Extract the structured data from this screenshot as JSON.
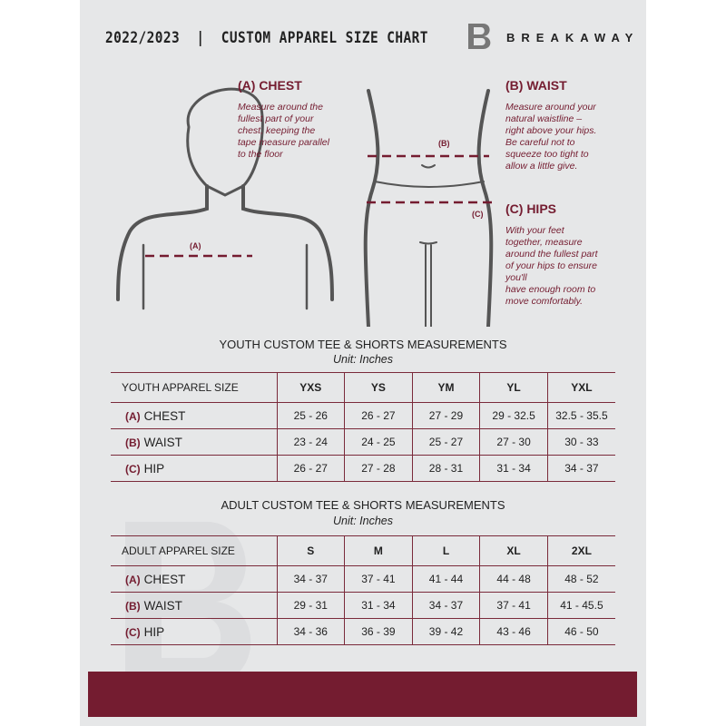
{
  "header": {
    "title": "2022/2023  |  CUSTOM APPAREL SIZE CHART",
    "brand": "BREAKAWAY",
    "logo_letter": "B"
  },
  "colors": {
    "accent": "#741c30",
    "background": "#e6e7e8"
  },
  "guide": {
    "chest": {
      "heading": "(A) CHEST",
      "marker": "(A)",
      "text": [
        "Measure around the",
        "fullest part of your",
        "chest, keeping the",
        "tape measure parallel",
        "to the floor"
      ]
    },
    "waist": {
      "heading": "(B) WAIST",
      "marker": "(B)",
      "text": [
        "Measure around your",
        "natural waistline –",
        "right above your hips.",
        "Be careful not to",
        "squeeze too tight to",
        "allow a little give."
      ]
    },
    "hips": {
      "heading": "(C) HIPS",
      "marker": "(C)",
      "text": [
        "With your feet",
        "together, measure",
        "around the fullest part",
        "of your hips to ensure",
        "you'll",
        "have enough room to",
        "move comfortably."
      ]
    }
  },
  "youth": {
    "title": "YOUTH CUSTOM TEE & SHORTS MEASUREMENTS",
    "unit": "Unit: Inches",
    "header": "YOUTH APPAREL SIZE",
    "sizes": [
      "YXS",
      "YS",
      "YM",
      "YL",
      "YXL"
    ],
    "rows": [
      {
        "key": "(A)",
        "label": "CHEST",
        "values": [
          "25 - 26",
          "26 - 27",
          "27 - 29",
          "29 - 32.5",
          "32.5 - 35.5"
        ]
      },
      {
        "key": "(B)",
        "label": "WAIST",
        "values": [
          "23 - 24",
          "24 - 25",
          "25 - 27",
          "27 - 30",
          "30 - 33"
        ]
      },
      {
        "key": "(C)",
        "label": "HIP",
        "values": [
          "26 - 27",
          "27 - 28",
          "28 - 31",
          "31 - 34",
          "34 - 37"
        ]
      }
    ]
  },
  "adult": {
    "title": "ADULT CUSTOM TEE & SHORTS MEASUREMENTS",
    "unit": "Unit: Inches",
    "header": "ADULT APPAREL SIZE",
    "sizes": [
      "S",
      "M",
      "L",
      "XL",
      "2XL"
    ],
    "rows": [
      {
        "key": "(A)",
        "label": "CHEST",
        "values": [
          "34 - 37",
          "37 - 41",
          "41 - 44",
          "44 - 48",
          "48 - 52"
        ]
      },
      {
        "key": "(B)",
        "label": "WAIST",
        "values": [
          "29 - 31",
          "31 - 34",
          "34 - 37",
          "37 - 41",
          "41 - 45.5"
        ]
      },
      {
        "key": "(C)",
        "label": "HIP",
        "values": [
          "34 - 36",
          "36 - 39",
          "39 - 42",
          "43 - 46",
          "46 - 50"
        ]
      }
    ]
  }
}
